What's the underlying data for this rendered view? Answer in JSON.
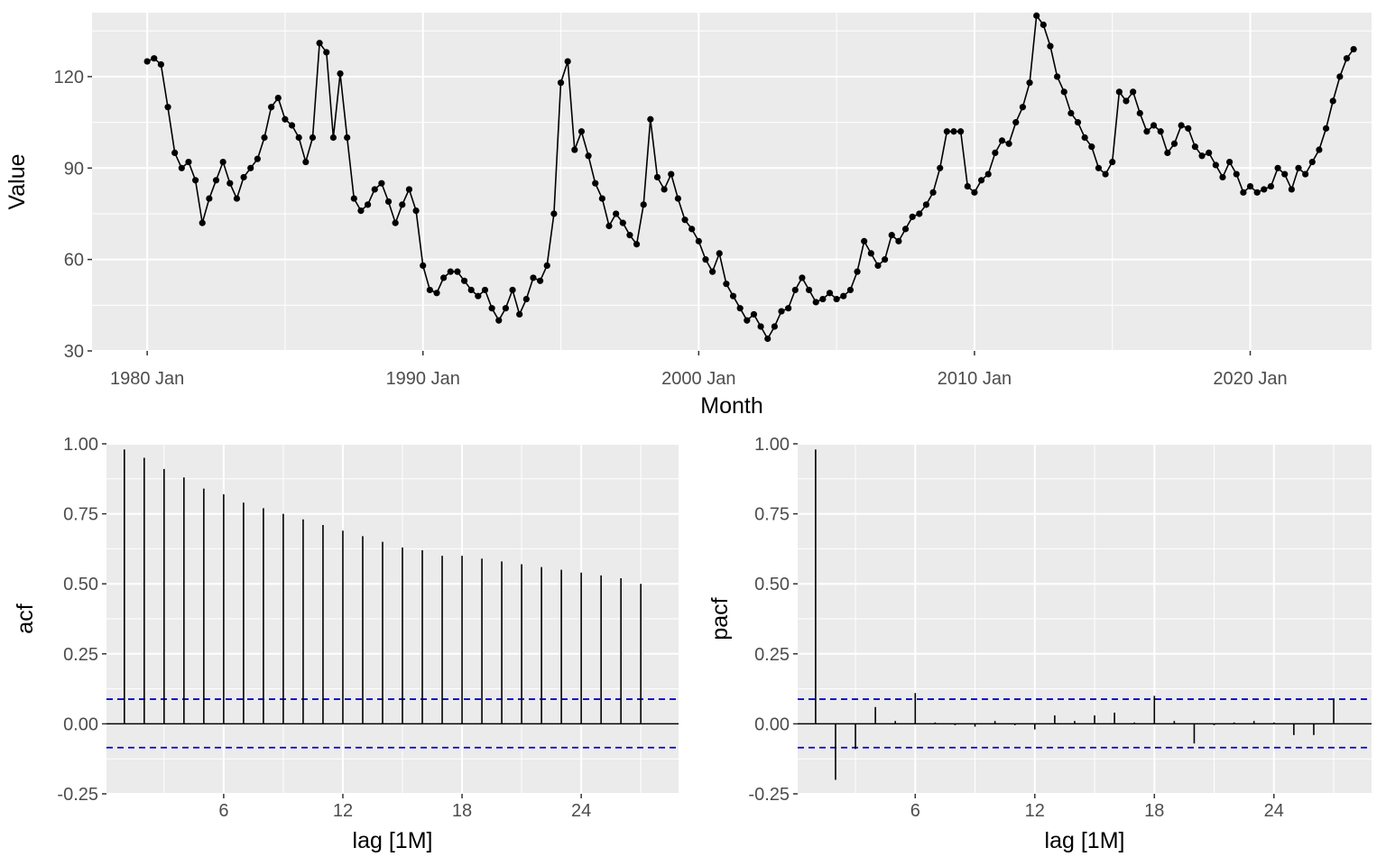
{
  "chart_data": [
    {
      "type": "line",
      "xlabel": "Month",
      "ylabel": "Value",
      "markers": true,
      "grid": true,
      "xlim": [
        1978.0,
        2024.4
      ],
      "ylim": [
        30,
        141
      ],
      "x_ticks": [
        1980,
        1990,
        2000,
        2010,
        2020
      ],
      "x_tick_labels": [
        "1980 Jan",
        "1990 Jan",
        "2000 Jan",
        "2010 Jan",
        "2020 Jan"
      ],
      "y_ticks": [
        30,
        60,
        90,
        120
      ],
      "y_tick_labels": [
        "30",
        "60",
        "90",
        "120"
      ],
      "series": [
        {
          "color": "#000000",
          "points": [
            [
              1980.0,
              125
            ],
            [
              1980.25,
              126
            ],
            [
              1980.5,
              124
            ],
            [
              1980.75,
              110
            ],
            [
              1981.0,
              95
            ],
            [
              1981.25,
              90
            ],
            [
              1981.5,
              92
            ],
            [
              1981.75,
              86
            ],
            [
              1982.0,
              72
            ],
            [
              1982.25,
              80
            ],
            [
              1982.5,
              86
            ],
            [
              1982.75,
              92
            ],
            [
              1983.0,
              85
            ],
            [
              1983.25,
              80
            ],
            [
              1983.5,
              87
            ],
            [
              1983.75,
              90
            ],
            [
              1984.0,
              93
            ],
            [
              1984.25,
              100
            ],
            [
              1984.5,
              110
            ],
            [
              1984.75,
              113
            ],
            [
              1985.0,
              106
            ],
            [
              1985.25,
              104
            ],
            [
              1985.5,
              100
            ],
            [
              1985.75,
              92
            ],
            [
              1986.0,
              100
            ],
            [
              1986.25,
              131
            ],
            [
              1986.5,
              128
            ],
            [
              1986.75,
              100
            ],
            [
              1987.0,
              121
            ],
            [
              1987.25,
              100
            ],
            [
              1987.5,
              80
            ],
            [
              1987.75,
              76
            ],
            [
              1988.0,
              78
            ],
            [
              1988.25,
              83
            ],
            [
              1988.5,
              85
            ],
            [
              1988.75,
              79
            ],
            [
              1989.0,
              72
            ],
            [
              1989.25,
              78
            ],
            [
              1989.5,
              83
            ],
            [
              1989.75,
              76
            ],
            [
              1990.0,
              58
            ],
            [
              1990.25,
              50
            ],
            [
              1990.5,
              49
            ],
            [
              1990.75,
              54
            ],
            [
              1991.0,
              56
            ],
            [
              1991.25,
              56
            ],
            [
              1991.5,
              53
            ],
            [
              1991.75,
              50
            ],
            [
              1992.0,
              48
            ],
            [
              1992.25,
              50
            ],
            [
              1992.5,
              44
            ],
            [
              1992.75,
              40
            ],
            [
              1993.0,
              44
            ],
            [
              1993.25,
              50
            ],
            [
              1993.5,
              42
            ],
            [
              1993.75,
              47
            ],
            [
              1994.0,
              54
            ],
            [
              1994.25,
              53
            ],
            [
              1994.5,
              58
            ],
            [
              1994.75,
              75
            ],
            [
              1995.0,
              118
            ],
            [
              1995.25,
              125
            ],
            [
              1995.5,
              96
            ],
            [
              1995.75,
              102
            ],
            [
              1996.0,
              94
            ],
            [
              1996.25,
              85
            ],
            [
              1996.5,
              80
            ],
            [
              1996.75,
              71
            ],
            [
              1997.0,
              75
            ],
            [
              1997.25,
              72
            ],
            [
              1997.5,
              68
            ],
            [
              1997.75,
              65
            ],
            [
              1998.0,
              78
            ],
            [
              1998.25,
              106
            ],
            [
              1998.5,
              87
            ],
            [
              1998.75,
              83
            ],
            [
              1999.0,
              88
            ],
            [
              1999.25,
              80
            ],
            [
              1999.5,
              73
            ],
            [
              1999.75,
              70
            ],
            [
              2000.0,
              66
            ],
            [
              2000.25,
              60
            ],
            [
              2000.5,
              56
            ],
            [
              2000.75,
              62
            ],
            [
              2001.0,
              52
            ],
            [
              2001.25,
              48
            ],
            [
              2001.5,
              44
            ],
            [
              2001.75,
              40
            ],
            [
              2002.0,
              42
            ],
            [
              2002.25,
              38
            ],
            [
              2002.5,
              34
            ],
            [
              2002.75,
              38
            ],
            [
              2003.0,
              43
            ],
            [
              2003.25,
              44
            ],
            [
              2003.5,
              50
            ],
            [
              2003.75,
              54
            ],
            [
              2004.0,
              50
            ],
            [
              2004.25,
              46
            ],
            [
              2004.5,
              47
            ],
            [
              2004.75,
              49
            ],
            [
              2005.0,
              47
            ],
            [
              2005.25,
              48
            ],
            [
              2005.5,
              50
            ],
            [
              2005.75,
              56
            ],
            [
              2006.0,
              66
            ],
            [
              2006.25,
              62
            ],
            [
              2006.5,
              58
            ],
            [
              2006.75,
              60
            ],
            [
              2007.0,
              68
            ],
            [
              2007.25,
              66
            ],
            [
              2007.5,
              70
            ],
            [
              2007.75,
              74
            ],
            [
              2008.0,
              75
            ],
            [
              2008.25,
              78
            ],
            [
              2008.5,
              82
            ],
            [
              2008.75,
              90
            ],
            [
              2009.0,
              102
            ],
            [
              2009.25,
              102
            ],
            [
              2009.5,
              102
            ],
            [
              2009.75,
              84
            ],
            [
              2010.0,
              82
            ],
            [
              2010.25,
              86
            ],
            [
              2010.5,
              88
            ],
            [
              2010.75,
              95
            ],
            [
              2011.0,
              99
            ],
            [
              2011.25,
              98
            ],
            [
              2011.5,
              105
            ],
            [
              2011.75,
              110
            ],
            [
              2012.0,
              118
            ],
            [
              2012.25,
              140
            ],
            [
              2012.5,
              137
            ],
            [
              2012.75,
              130
            ],
            [
              2013.0,
              120
            ],
            [
              2013.25,
              115
            ],
            [
              2013.5,
              108
            ],
            [
              2013.75,
              105
            ],
            [
              2014.0,
              100
            ],
            [
              2014.25,
              97
            ],
            [
              2014.5,
              90
            ],
            [
              2014.75,
              88
            ],
            [
              2015.0,
              92
            ],
            [
              2015.25,
              115
            ],
            [
              2015.5,
              112
            ],
            [
              2015.75,
              115
            ],
            [
              2016.0,
              108
            ],
            [
              2016.25,
              102
            ],
            [
              2016.5,
              104
            ],
            [
              2016.75,
              102
            ],
            [
              2017.0,
              95
            ],
            [
              2017.25,
              98
            ],
            [
              2017.5,
              104
            ],
            [
              2017.75,
              103
            ],
            [
              2018.0,
              97
            ],
            [
              2018.25,
              94
            ],
            [
              2018.5,
              95
            ],
            [
              2018.75,
              91
            ],
            [
              2019.0,
              87
            ],
            [
              2019.25,
              92
            ],
            [
              2019.5,
              88
            ],
            [
              2019.75,
              82
            ],
            [
              2020.0,
              84
            ],
            [
              2020.25,
              82
            ],
            [
              2020.5,
              83
            ],
            [
              2020.75,
              84
            ],
            [
              2021.0,
              90
            ],
            [
              2021.25,
              88
            ],
            [
              2021.5,
              83
            ],
            [
              2021.75,
              90
            ],
            [
              2022.0,
              88
            ],
            [
              2022.25,
              92
            ],
            [
              2022.5,
              96
            ],
            [
              2022.75,
              103
            ],
            [
              2023.0,
              112
            ],
            [
              2023.25,
              120
            ],
            [
              2023.5,
              126
            ],
            [
              2023.75,
              129
            ]
          ]
        }
      ]
    },
    {
      "type": "bar",
      "xlabel": "lag [1M]",
      "ylabel": "acf",
      "grid": true,
      "xlim": [
        0.1,
        28.9
      ],
      "ylim": [
        -0.25,
        1.0
      ],
      "x_ticks": [
        6,
        12,
        18,
        24
      ],
      "x_tick_labels": [
        "6",
        "12",
        "18",
        "24"
      ],
      "y_ticks": [
        -0.25,
        0.0,
        0.25,
        0.5,
        0.75,
        1.0
      ],
      "y_tick_labels": [
        "-0.25",
        "0.00",
        "0.25",
        "0.50",
        "0.75",
        "1.00"
      ],
      "lags": [
        1,
        2,
        3,
        4,
        5,
        6,
        7,
        8,
        9,
        10,
        11,
        12,
        13,
        14,
        15,
        16,
        17,
        18,
        19,
        20,
        21,
        22,
        23,
        24,
        25,
        26,
        27
      ],
      "values": [
        0.98,
        0.95,
        0.91,
        0.88,
        0.84,
        0.82,
        0.79,
        0.77,
        0.75,
        0.73,
        0.71,
        0.69,
        0.67,
        0.65,
        0.63,
        0.62,
        0.6,
        0.6,
        0.59,
        0.58,
        0.57,
        0.56,
        0.55,
        0.54,
        0.53,
        0.52,
        0.5
      ],
      "confidence_bounds": [
        0.088,
        -0.085
      ],
      "bound_color": "#0000cc"
    },
    {
      "type": "bar",
      "xlabel": "lag [1M]",
      "ylabel": "pacf",
      "grid": true,
      "xlim": [
        0.1,
        28.9
      ],
      "ylim": [
        -0.25,
        1.0
      ],
      "x_ticks": [
        6,
        12,
        18,
        24
      ],
      "x_tick_labels": [
        "6",
        "12",
        "18",
        "24"
      ],
      "y_ticks": [
        -0.25,
        0.0,
        0.25,
        0.5,
        0.75,
        1.0
      ],
      "y_tick_labels": [
        "-0.25",
        "0.00",
        "0.25",
        "0.50",
        "0.75",
        "1.00"
      ],
      "lags": [
        1,
        2,
        3,
        4,
        5,
        6,
        7,
        8,
        9,
        10,
        11,
        12,
        13,
        14,
        15,
        16,
        17,
        18,
        19,
        20,
        21,
        22,
        23,
        24,
        25,
        26,
        27
      ],
      "values": [
        0.98,
        -0.2,
        -0.09,
        0.06,
        0.01,
        0.11,
        0.005,
        -0.005,
        -0.01,
        0.01,
        -0.005,
        -0.02,
        0.03,
        0.01,
        0.03,
        0.04,
        0.005,
        0.1,
        0.01,
        -0.07,
        -0.005,
        0.005,
        0.01,
        0.005,
        -0.04,
        -0.04,
        0.09
      ],
      "confidence_bounds": [
        0.088,
        -0.085
      ],
      "bound_color": "#0000cc"
    }
  ]
}
